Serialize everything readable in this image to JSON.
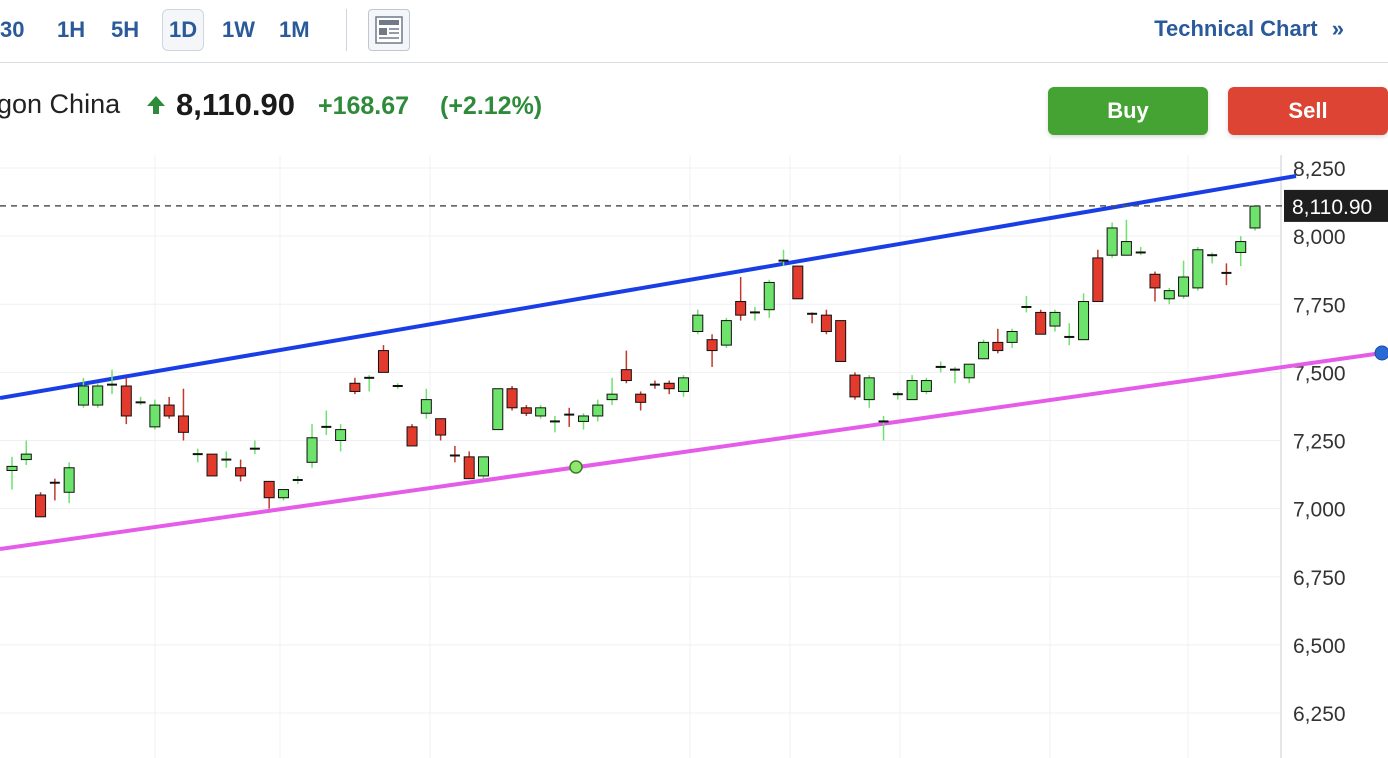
{
  "toolbar": {
    "timeframes": [
      "30",
      "1H",
      "5H",
      "1D",
      "1W",
      "1M"
    ],
    "active_timeframe": "1D",
    "technical_chart_label": "Technical Chart",
    "technical_chart_chevron": "»"
  },
  "quote": {
    "name": "gon China",
    "price": "8,110.90",
    "change": "+168.67",
    "change_pct": "(+2.12%)",
    "direction": "up",
    "up_color": "#2e8b3a"
  },
  "actions": {
    "buy_label": "Buy",
    "sell_label": "Sell",
    "buy_color": "#44a332",
    "sell_color": "#dd4434"
  },
  "chart_data": {
    "type": "candlestick",
    "ylim": [
      6125,
      8300
    ],
    "yticks": [
      6250,
      6500,
      6750,
      7000,
      7250,
      7500,
      7750,
      8000,
      8250
    ],
    "ytick_labels": [
      "6,250",
      "6,500",
      "6,750",
      "7,000",
      "7,250",
      "7,500",
      "7,750",
      "8,000",
      "8,250"
    ],
    "last_price": 8110.9,
    "last_price_label": "8,110.90",
    "up_color": "#6ee36b",
    "down_color": "#e33a2e",
    "candles": [
      [
        7140,
        7155,
        7070,
        7190
      ],
      [
        7180,
        7200,
        7160,
        7250
      ],
      [
        7050,
        6970,
        6990,
        7060
      ],
      [
        7100,
        7090,
        7030,
        7110
      ],
      [
        7060,
        7150,
        7020,
        7170
      ],
      [
        7380,
        7450,
        7370,
        7480
      ],
      [
        7380,
        7450,
        7370,
        7460
      ],
      [
        7450,
        7460,
        7420,
        7510
      ],
      [
        7450,
        7340,
        7310,
        7480
      ],
      [
        7390,
        7390,
        7380,
        7410
      ],
      [
        7300,
        7380,
        7290,
        7400
      ],
      [
        7380,
        7340,
        7330,
        7410
      ],
      [
        7340,
        7280,
        7250,
        7440
      ],
      [
        7200,
        7200,
        7170,
        7220
      ],
      [
        7200,
        7120,
        7120,
        7200
      ],
      [
        7180,
        7180,
        7150,
        7210
      ],
      [
        7150,
        7120,
        7100,
        7180
      ],
      [
        7220,
        7220,
        7200,
        7250
      ],
      [
        7100,
        7040,
        7000,
        7100
      ],
      [
        7040,
        7070,
        7030,
        7070
      ],
      [
        7100,
        7110,
        7090,
        7120
      ],
      [
        7170,
        7260,
        7150,
        7310
      ],
      [
        7300,
        7300,
        7270,
        7360
      ],
      [
        7250,
        7290,
        7210,
        7310
      ],
      [
        7460,
        7430,
        7420,
        7480
      ],
      [
        7480,
        7480,
        7430,
        7490
      ],
      [
        7580,
        7500,
        7500,
        7600
      ],
      [
        7450,
        7450,
        7440,
        7460
      ],
      [
        7300,
        7230,
        7230,
        7310
      ],
      [
        7350,
        7400,
        7330,
        7440
      ],
      [
        7330,
        7270,
        7250,
        7330
      ],
      [
        7200,
        7190,
        7170,
        7230
      ],
      [
        7190,
        7110,
        7110,
        7210
      ],
      [
        7120,
        7190,
        7110,
        7190
      ],
      [
        7290,
        7440,
        7290,
        7440
      ],
      [
        7440,
        7370,
        7360,
        7450
      ],
      [
        7370,
        7350,
        7340,
        7380
      ],
      [
        7340,
        7370,
        7330,
        7380
      ],
      [
        7320,
        7320,
        7280,
        7340
      ],
      [
        7350,
        7340,
        7300,
        7370
      ],
      [
        7320,
        7340,
        7290,
        7350
      ],
      [
        7340,
        7380,
        7320,
        7400
      ],
      [
        7400,
        7420,
        7380,
        7480
      ],
      [
        7510,
        7470,
        7460,
        7580
      ],
      [
        7420,
        7390,
        7360,
        7430
      ],
      [
        7460,
        7450,
        7440,
        7470
      ],
      [
        7460,
        7440,
        7420,
        7470
      ],
      [
        7430,
        7480,
        7410,
        7490
      ],
      [
        7650,
        7710,
        7640,
        7730
      ],
      [
        7620,
        7580,
        7520,
        7640
      ],
      [
        7600,
        7690,
        7590,
        7700
      ],
      [
        7760,
        7710,
        7690,
        7850
      ],
      [
        7720,
        7720,
        7690,
        7740
      ],
      [
        7730,
        7830,
        7700,
        7840
      ],
      [
        7910,
        7910,
        7890,
        7950
      ],
      [
        7890,
        7770,
        7770,
        7890
      ],
      [
        7720,
        7710,
        7680,
        7720
      ],
      [
        7710,
        7650,
        7640,
        7730
      ],
      [
        7690,
        7540,
        7540,
        7690
      ],
      [
        7490,
        7410,
        7400,
        7500
      ],
      [
        7400,
        7480,
        7370,
        7490
      ],
      [
        7320,
        7320,
        7250,
        7340
      ],
      [
        7420,
        7420,
        7400,
        7430
      ],
      [
        7400,
        7470,
        7400,
        7490
      ],
      [
        7430,
        7470,
        7420,
        7480
      ],
      [
        7520,
        7520,
        7500,
        7540
      ],
      [
        7510,
        7510,
        7460,
        7520
      ],
      [
        7480,
        7530,
        7460,
        7530
      ],
      [
        7550,
        7610,
        7550,
        7620
      ],
      [
        7610,
        7580,
        7570,
        7660
      ],
      [
        7610,
        7650,
        7590,
        7660
      ],
      [
        7740,
        7740,
        7720,
        7780
      ],
      [
        7720,
        7640,
        7640,
        7730
      ],
      [
        7670,
        7720,
        7650,
        7730
      ],
      [
        7630,
        7630,
        7600,
        7680
      ],
      [
        7620,
        7760,
        7620,
        7790
      ],
      [
        7920,
        7760,
        7760,
        7950
      ],
      [
        7930,
        8030,
        7920,
        8050
      ],
      [
        7930,
        7980,
        7930,
        8060
      ],
      [
        7940,
        7940,
        7930,
        7960
      ],
      [
        7860,
        7810,
        7760,
        7870
      ],
      [
        7770,
        7800,
        7750,
        7810
      ],
      [
        7780,
        7850,
        7770,
        7910
      ],
      [
        7810,
        7950,
        7800,
        7960
      ],
      [
        7930,
        7930,
        7900,
        7940
      ],
      [
        7870,
        7860,
        7820,
        7900
      ],
      [
        7940,
        7980,
        7890,
        8000
      ],
      [
        8030,
        8110,
        8020,
        8110
      ]
    ]
  }
}
